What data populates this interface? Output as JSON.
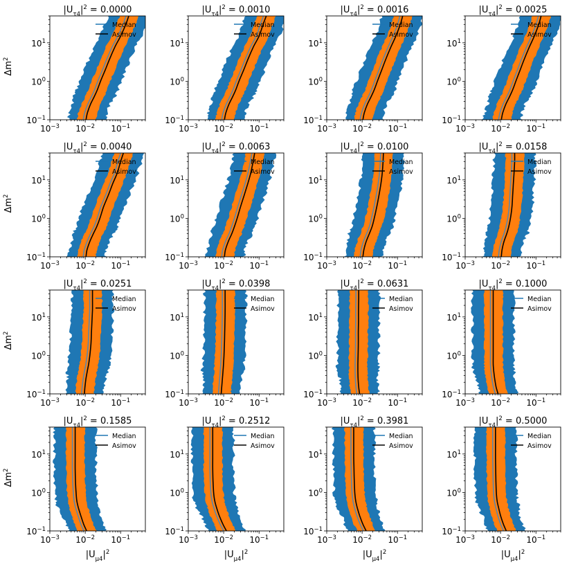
{
  "chart_data": {
    "type": "area",
    "layout": "4x4 grid of panels",
    "xlabel": "|U_μ4|²",
    "ylabel": "Δm²",
    "xscale": "log",
    "yscale": "log",
    "xlim": [
      0.001,
      0.5
    ],
    "ylim": [
      0.1,
      50
    ],
    "xticks": [
      {
        "value": 0.001,
        "exp": "−3"
      },
      {
        "value": 0.01,
        "exp": "−2"
      },
      {
        "value": 0.1,
        "exp": "−1"
      }
    ],
    "yticks": [
      {
        "value": 0.1,
        "exp": "−1"
      },
      {
        "value": 1,
        "exp": "0"
      },
      {
        "value": 10,
        "exp": "1"
      }
    ],
    "legend": {
      "position": "top-right",
      "entries": [
        {
          "name": "Median",
          "color": "#1f77b4"
        },
        {
          "name": "Asimov",
          "color": "#000000"
        }
      ]
    },
    "band_colors": {
      "outer": "#1f77b4",
      "inner": "#ff7f0e",
      "median": "#5a86aa",
      "asimov": "#000000"
    },
    "y_grid": [
      0.1,
      0.15,
      0.25,
      0.4,
      0.6,
      1,
      2,
      4,
      8,
      15,
      30,
      50
    ],
    "panels": [
      {
        "title_value": "0.0000",
        "asimov": [
          0.0105,
          0.0115,
          0.014,
          0.018,
          0.022,
          0.027,
          0.037,
          0.05,
          0.07,
          0.1,
          0.14,
          0.17
        ]
      },
      {
        "title_value": "0.0010",
        "asimov": [
          0.0105,
          0.0115,
          0.014,
          0.018,
          0.022,
          0.027,
          0.037,
          0.05,
          0.07,
          0.1,
          0.13,
          0.16
        ]
      },
      {
        "title_value": "0.0016",
        "asimov": [
          0.0105,
          0.0115,
          0.014,
          0.018,
          0.022,
          0.027,
          0.036,
          0.048,
          0.066,
          0.09,
          0.12,
          0.14
        ]
      },
      {
        "title_value": "0.0025",
        "asimov": [
          0.0105,
          0.0115,
          0.014,
          0.018,
          0.022,
          0.027,
          0.036,
          0.048,
          0.066,
          0.09,
          0.12,
          0.14
        ]
      },
      {
        "title_value": "0.0040",
        "asimov": [
          0.0105,
          0.0112,
          0.0135,
          0.017,
          0.021,
          0.026,
          0.033,
          0.045,
          0.06,
          0.08,
          0.1,
          0.12
        ]
      },
      {
        "title_value": "0.0063",
        "asimov": [
          0.0105,
          0.0112,
          0.0135,
          0.017,
          0.02,
          0.024,
          0.03,
          0.038,
          0.048,
          0.058,
          0.068,
          0.075
        ]
      },
      {
        "title_value": "0.0100",
        "asimov": [
          0.0105,
          0.0112,
          0.013,
          0.016,
          0.019,
          0.022,
          0.026,
          0.03,
          0.034,
          0.037,
          0.039,
          0.04
        ]
      },
      {
        "title_value": "0.0158",
        "asimov": [
          0.0105,
          0.011,
          0.0125,
          0.015,
          0.017,
          0.019,
          0.021,
          0.022,
          0.023,
          0.024,
          0.025,
          0.025
        ]
      },
      {
        "title_value": "0.0251",
        "asimov": [
          0.0095,
          0.0098,
          0.0105,
          0.0115,
          0.0125,
          0.0135,
          0.0145,
          0.015,
          0.0155,
          0.016,
          0.016,
          0.016
        ]
      },
      {
        "title_value": "0.0398",
        "asimov": [
          0.0085,
          0.0088,
          0.0092,
          0.0096,
          0.0099,
          0.0102,
          0.0105,
          0.0107,
          0.0109,
          0.011,
          0.011,
          0.011
        ]
      },
      {
        "title_value": "0.0631",
        "asimov": [
          0.0085,
          0.008,
          0.0077,
          0.0076,
          0.0076,
          0.0077,
          0.0078,
          0.0078,
          0.0079,
          0.0079,
          0.008,
          0.008
        ]
      },
      {
        "title_value": "0.1000",
        "asimov": [
          0.0085,
          0.0075,
          0.0068,
          0.0064,
          0.0062,
          0.0062,
          0.0062,
          0.0062,
          0.0062,
          0.0062,
          0.0062,
          0.0062
        ]
      },
      {
        "title_value": "0.1585",
        "asimov": [
          0.011,
          0.009,
          0.0075,
          0.0064,
          0.0058,
          0.0055,
          0.0053,
          0.0052,
          0.0052,
          0.0052,
          0.0052,
          0.0052
        ]
      },
      {
        "title_value": "0.2512",
        "asimov": [
          0.012,
          0.0095,
          0.0075,
          0.0063,
          0.0056,
          0.0052,
          0.005,
          0.0049,
          0.0049,
          0.0049,
          0.0049,
          0.0049
        ]
      },
      {
        "title_value": "0.3981",
        "asimov": [
          0.013,
          0.0105,
          0.0085,
          0.0073,
          0.0066,
          0.0062,
          0.006,
          0.0059,
          0.0058,
          0.0058,
          0.0058,
          0.0058
        ]
      },
      {
        "title_value": "0.5000",
        "asimov": [
          0.0145,
          0.012,
          0.01,
          0.0088,
          0.008,
          0.0076,
          0.0074,
          0.0073,
          0.0072,
          0.0072,
          0.0072,
          0.0072
        ]
      }
    ]
  }
}
